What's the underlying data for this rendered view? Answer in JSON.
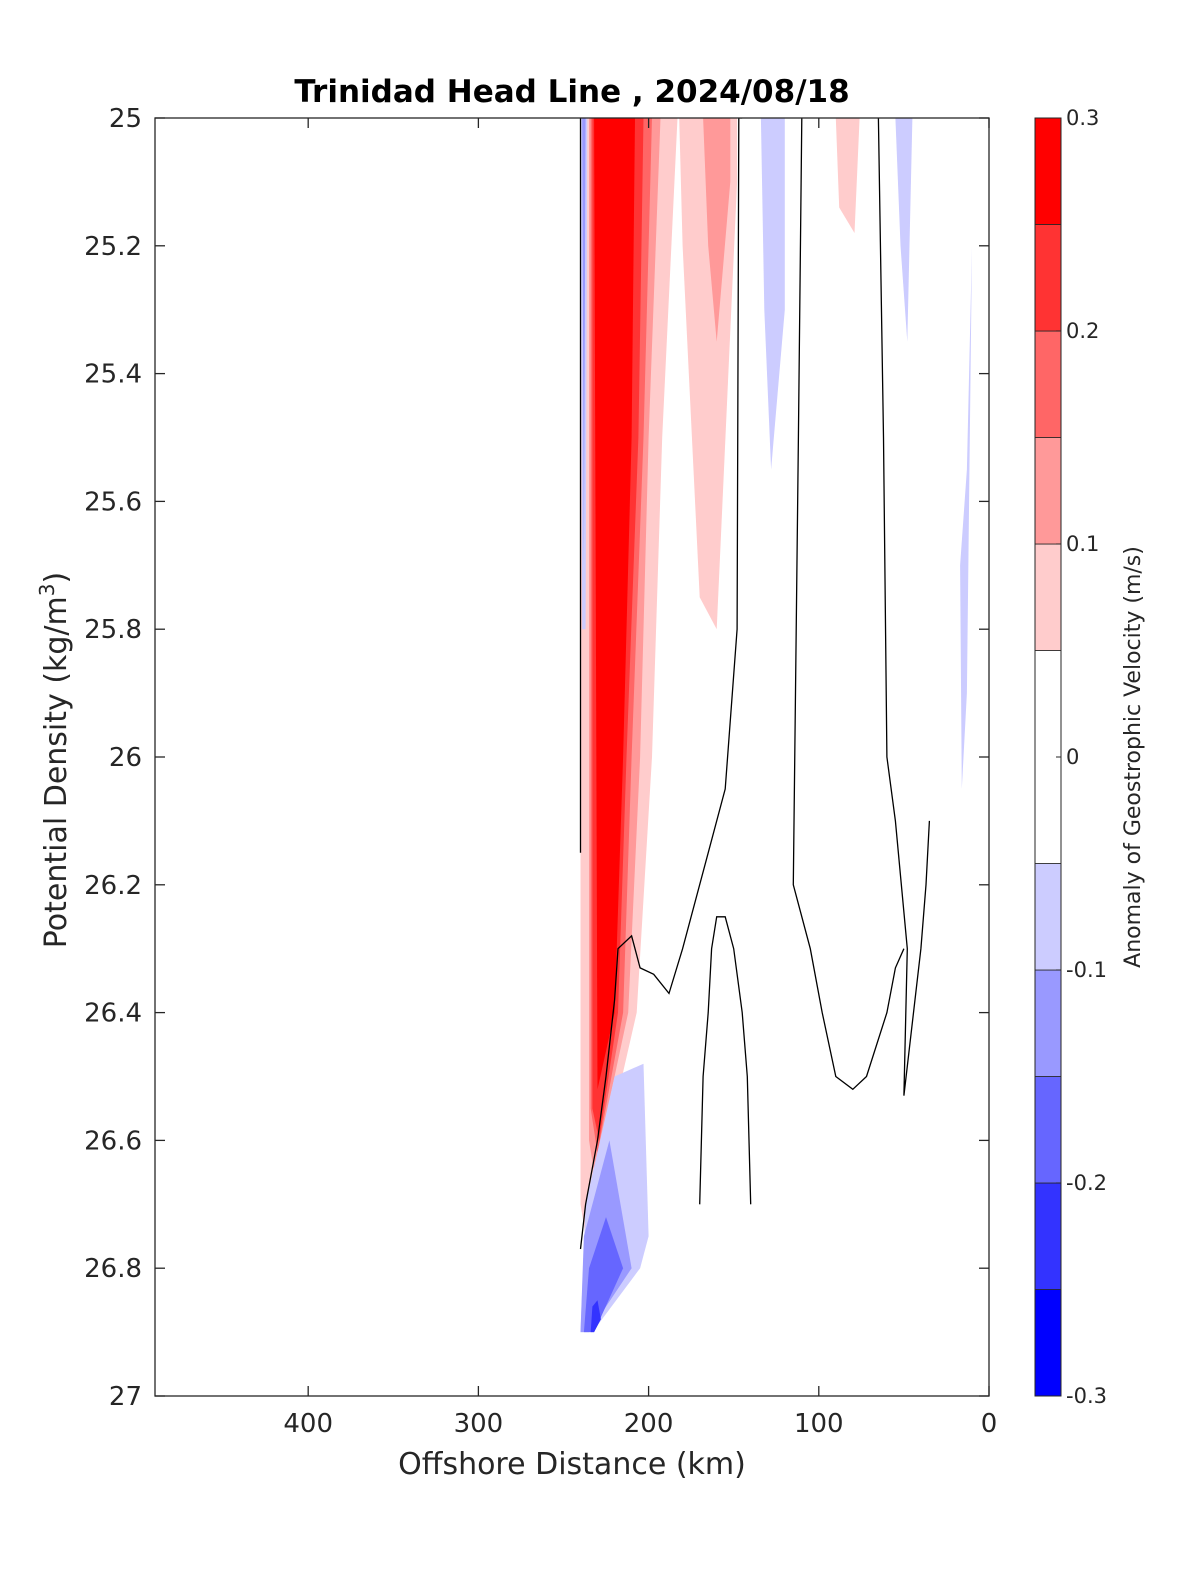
{
  "chart_data": {
    "type": "contour",
    "title": "Trinidad Head Line , 2024/08/18",
    "xlabel": "Offshore Distance (km)",
    "ylabel": "Potential Density (kg/m",
    "ylabel_sup": "3",
    "ylabel_close": ")",
    "xlim": [
      490,
      0
    ],
    "x_reversed": true,
    "ylim": [
      25,
      27
    ],
    "y_reversed": true,
    "xticks": [
      400,
      300,
      200,
      100,
      0
    ],
    "xtick_labels": [
      "400",
      "300",
      "200",
      "100",
      "0"
    ],
    "yticks": [
      25,
      25.2,
      25.4,
      25.6,
      25.8,
      26,
      26.2,
      26.4,
      26.6,
      26.8,
      27
    ],
    "ytick_labels": [
      "25",
      "25.2",
      "25.4",
      "25.6",
      "25.8",
      "26",
      "26.2",
      "26.4",
      "26.6",
      "26.8",
      "27"
    ],
    "colorbar": {
      "label": "Anomaly of Geostrophic Velocity (m/s)",
      "range": [
        -0.3,
        0.3
      ],
      "levels": [
        -0.3,
        -0.25,
        -0.2,
        -0.15,
        -0.1,
        -0.05,
        0.05,
        0.1,
        0.15,
        0.2,
        0.25,
        0.3
      ],
      "colors": [
        "#0000ff",
        "#3333ff",
        "#6666ff",
        "#9999ff",
        "#ccccff",
        "#ffffff",
        "#ffcccc",
        "#ff9999",
        "#ff6666",
        "#ff3333",
        "#ff0000"
      ],
      "ticks": [
        0.3,
        0.2,
        0.1,
        0,
        -0.1,
        -0.2,
        -0.3
      ],
      "tick_labels": [
        "0.3",
        "0.2",
        "0.1",
        "0",
        "-0.1",
        "-0.2",
        "-0.3"
      ]
    },
    "filled_regions": [
      {
        "level": 0.075,
        "color": "#ffcccc",
        "points": [
          [
            240,
            25
          ],
          [
            183,
            25
          ],
          [
            192,
            25.5
          ],
          [
            198,
            26
          ],
          [
            207,
            26.4
          ],
          [
            237,
            26.75
          ],
          [
            240,
            26.7
          ]
        ]
      },
      {
        "level": 0.125,
        "color": "#ff9999",
        "points": [
          [
            235,
            25
          ],
          [
            193,
            25
          ],
          [
            200,
            25.5
          ],
          [
            205,
            26
          ],
          [
            212,
            26.4
          ],
          [
            232,
            26.65
          ],
          [
            235,
            26.6
          ]
        ]
      },
      {
        "level": 0.175,
        "color": "#ff6666",
        "points": [
          [
            234,
            25
          ],
          [
            198,
            25
          ],
          [
            203,
            25.5
          ],
          [
            210,
            26
          ],
          [
            215,
            26.4
          ],
          [
            230,
            26.62
          ],
          [
            234,
            26.55
          ]
        ]
      },
      {
        "level": 0.225,
        "color": "#ff3333",
        "points": [
          [
            233,
            25
          ],
          [
            203,
            25
          ],
          [
            206,
            25.5
          ],
          [
            213,
            26
          ],
          [
            218,
            26.4
          ],
          [
            229,
            26.6
          ],
          [
            233,
            26.55
          ]
        ]
      },
      {
        "level": 0.275,
        "color": "#ff0000",
        "points": [
          [
            232,
            25
          ],
          [
            208,
            25
          ],
          [
            210,
            25.5
          ],
          [
            215,
            26
          ],
          [
            220,
            26.4
          ],
          [
            230,
            26.52
          ]
        ]
      },
      {
        "level": 0.075,
        "color": "#ffcccc",
        "points": [
          [
            182,
            25
          ],
          [
            148,
            25
          ],
          [
            148,
            25.1
          ],
          [
            160,
            25.8
          ],
          [
            170,
            25.75
          ],
          [
            180,
            25.2
          ]
        ]
      },
      {
        "level": 0.125,
        "color": "#ff9999",
        "points": [
          [
            168,
            25
          ],
          [
            152,
            25
          ],
          [
            152,
            25.1
          ],
          [
            160,
            25.35
          ],
          [
            165,
            25.2
          ]
        ]
      },
      {
        "level": 0.075,
        "color": "#ffcccc",
        "points": [
          [
            90,
            25
          ],
          [
            76,
            25
          ],
          [
            79,
            25.18
          ],
          [
            88,
            25.14
          ]
        ]
      },
      {
        "level": -0.075,
        "color": "#ccccff",
        "points": [
          [
            134,
            25
          ],
          [
            120,
            25
          ],
          [
            120,
            25.3
          ],
          [
            128,
            25.55
          ],
          [
            132,
            25.3
          ]
        ]
      },
      {
        "level": -0.075,
        "color": "#ccccff",
        "points": [
          [
            55,
            25
          ],
          [
            45,
            25
          ],
          [
            48,
            25.35
          ],
          [
            52,
            25.2
          ]
        ]
      },
      {
        "level": -0.075,
        "color": "#ccccff",
        "points": [
          [
            10,
            25.2
          ],
          [
            13,
            25.55
          ],
          [
            17,
            25.7
          ],
          [
            16,
            26.05
          ],
          [
            13,
            25.9
          ]
        ]
      },
      {
        "level": -0.075,
        "color": "#ccccff",
        "points": [
          [
            240,
            25
          ],
          [
            236,
            25
          ],
          [
            237,
            25.8
          ],
          [
            239,
            25.8
          ]
        ]
      },
      {
        "level": -0.125,
        "color": "#9999ff",
        "points": [
          [
            239,
            25
          ],
          [
            237,
            25
          ],
          [
            238,
            25.7
          ]
        ]
      },
      {
        "level": -0.075,
        "color": "#ccccff",
        "points": [
          [
            220,
            26.5
          ],
          [
            203,
            26.48
          ],
          [
            200,
            26.75
          ],
          [
            205,
            26.8
          ],
          [
            233,
            26.9
          ],
          [
            240,
            26.9
          ],
          [
            237,
            26.7
          ]
        ]
      },
      {
        "level": -0.125,
        "color": "#9999ff",
        "points": [
          [
            223,
            26.6
          ],
          [
            210,
            26.8
          ],
          [
            235,
            26.9
          ],
          [
            240,
            26.9
          ],
          [
            238,
            26.75
          ]
        ]
      },
      {
        "level": -0.175,
        "color": "#6666ff",
        "points": [
          [
            225,
            26.72
          ],
          [
            215,
            26.8
          ],
          [
            232,
            26.9
          ],
          [
            238,
            26.9
          ],
          [
            235,
            26.8
          ]
        ]
      },
      {
        "level": -0.225,
        "color": "#3333ff",
        "points": [
          [
            230,
            26.85
          ],
          [
            228,
            26.88
          ],
          [
            232,
            26.9
          ],
          [
            234,
            26.9
          ],
          [
            233,
            26.86
          ]
        ]
      }
    ],
    "zero_contours": [
      [
        [
          240,
          25
        ],
        [
          240,
          25.5
        ],
        [
          240,
          26
        ],
        [
          240,
          26.15
        ]
      ],
      [
        [
          240,
          26.77
        ],
        [
          237,
          26.7
        ],
        [
          230,
          26.6
        ],
        [
          225,
          26.5
        ],
        [
          220,
          26.38
        ],
        [
          218,
          26.3
        ],
        [
          210,
          26.28
        ],
        [
          205,
          26.33
        ],
        [
          197,
          26.34
        ],
        [
          188,
          26.37
        ],
        [
          180,
          26.3
        ],
        [
          175,
          26.25
        ],
        [
          165,
          26.15
        ],
        [
          155,
          26.05
        ],
        [
          148,
          25.8
        ],
        [
          147,
          25
        ],
        [
          145,
          25
        ]
      ],
      [
        [
          140,
          26.7
        ],
        [
          142,
          26.5
        ],
        [
          145,
          26.4
        ],
        [
          150,
          26.3
        ],
        [
          155,
          26.25
        ],
        [
          160,
          26.25
        ],
        [
          163,
          26.3
        ],
        [
          165,
          26.4
        ],
        [
          168,
          26.5
        ],
        [
          170,
          26.7
        ]
      ],
      [
        [
          110,
          25
        ],
        [
          112,
          25.5
        ],
        [
          115,
          26.2
        ],
        [
          105,
          26.3
        ],
        [
          98,
          26.4
        ],
        [
          90,
          26.5
        ],
        [
          80,
          26.52
        ],
        [
          72,
          26.5
        ],
        [
          60,
          26.4
        ],
        [
          55,
          26.33
        ],
        [
          50,
          26.3
        ]
      ],
      [
        [
          65,
          25
        ],
        [
          62,
          25.5
        ],
        [
          60,
          26.0
        ],
        [
          55,
          26.1
        ],
        [
          48,
          26.3
        ],
        [
          50,
          26.53
        ],
        [
          40,
          26.3
        ],
        [
          37,
          26.2
        ],
        [
          35,
          26.1
        ]
      ]
    ]
  }
}
